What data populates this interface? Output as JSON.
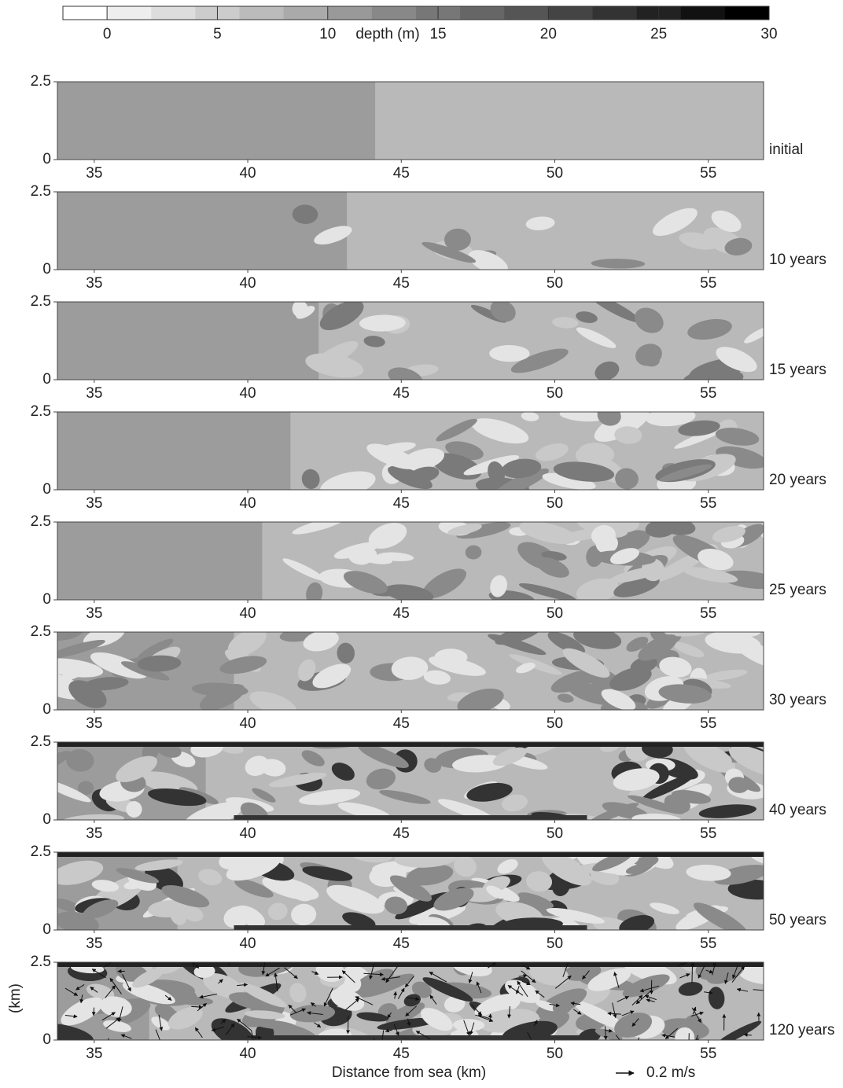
{
  "colorbar": {
    "label": "depth (m)",
    "lim": [
      -2,
      30
    ],
    "ticks": [
      0,
      5,
      10,
      15,
      20,
      25,
      30
    ]
  },
  "xlim": [
    33.8,
    56.8
  ],
  "xticks": [
    35,
    40,
    45,
    50,
    55
  ],
  "ylim": [
    0,
    2.5
  ],
  "yticks": [
    0,
    2.5
  ],
  "xlabel": "Distance from sea (km)",
  "ylabel": "(km)",
  "arrow_label": "0.2 m/s",
  "panels": [
    {
      "label": "initial"
    },
    {
      "label": "10 years"
    },
    {
      "label": "15 years"
    },
    {
      "label": "20 years"
    },
    {
      "label": "25 years"
    },
    {
      "label": "30 years"
    },
    {
      "label": "40 years"
    },
    {
      "label": "50 years"
    },
    {
      "label": "120 years"
    }
  ]
}
